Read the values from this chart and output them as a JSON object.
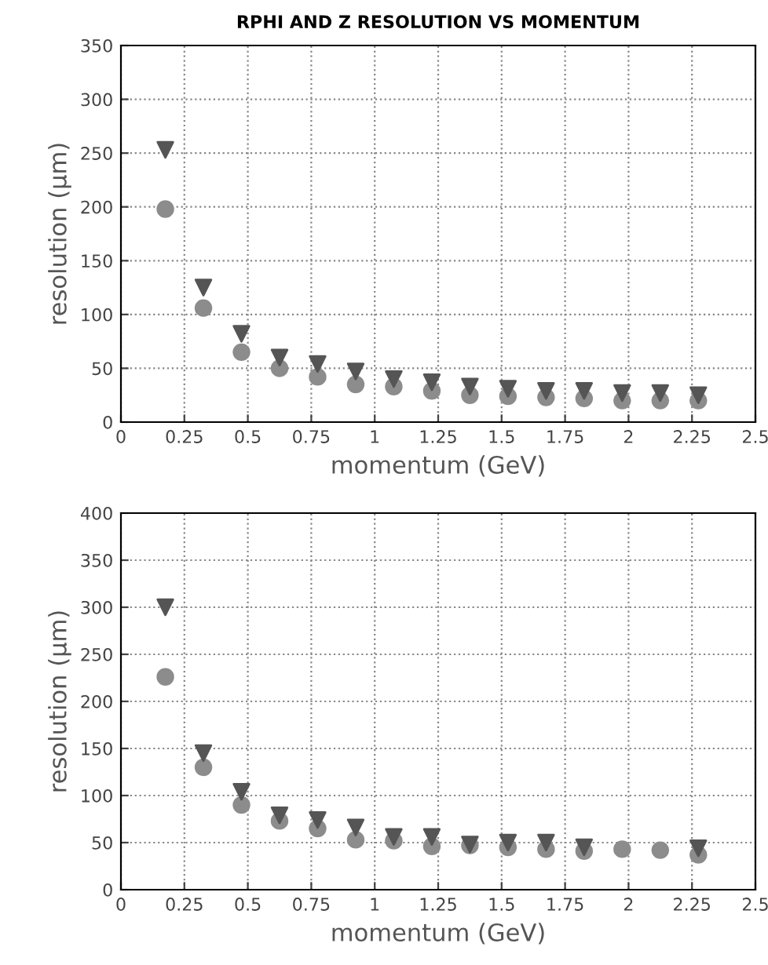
{
  "chart_data": [
    {
      "type": "scatter",
      "title": "RPHI AND Z RESOLUTION VS MOMENTUM",
      "xlabel": "momentum (GeV)",
      "ylabel": "resolution (μm)",
      "x": [
        0.175,
        0.325,
        0.475,
        0.625,
        0.775,
        0.925,
        1.075,
        1.225,
        1.375,
        1.525,
        1.675,
        1.825,
        1.975,
        2.125,
        2.275
      ],
      "series": [
        {
          "color": "#555555",
          "marker": "triangle",
          "values": [
            253,
            125,
            82,
            60,
            54,
            47,
            40,
            37,
            33,
            31,
            29,
            29,
            27,
            27,
            25
          ]
        },
        {
          "color": "#8c8c8c",
          "marker": "circle",
          "values": [
            198,
            106,
            65,
            50,
            42,
            35,
            33,
            29,
            25,
            24,
            23,
            22,
            20,
            20,
            20
          ]
        }
      ],
      "xlim": [
        0,
        2.5
      ],
      "xticks": [
        0,
        0.25,
        0.5,
        0.75,
        1,
        1.25,
        1.5,
        1.75,
        2,
        2.25,
        2.5
      ],
      "ylim": [
        0,
        350
      ],
      "yticks": [
        0,
        50,
        100,
        150,
        200,
        250,
        300,
        350
      ],
      "grid": true,
      "legend": false
    },
    {
      "type": "scatter",
      "xlabel": "momentum (GeV)",
      "ylabel": "resolution (μm)",
      "x": [
        0.175,
        0.325,
        0.475,
        0.625,
        0.775,
        0.925,
        1.075,
        1.225,
        1.375,
        1.525,
        1.675,
        1.825,
        1.975,
        2.125,
        2.275
      ],
      "series": [
        {
          "color": "#555555",
          "marker": "triangle",
          "values": [
            300,
            145,
            104,
            79,
            74,
            66,
            56,
            56,
            48,
            50,
            50,
            45,
            null,
            null,
            44
          ]
        },
        {
          "color": "#8c8c8c",
          "marker": "circle",
          "values": [
            226,
            130,
            90,
            73,
            65,
            53,
            52,
            46,
            47,
            45,
            43,
            41,
            43,
            42,
            37
          ]
        }
      ],
      "xlim": [
        0,
        2.5
      ],
      "xticks": [
        0,
        0.25,
        0.5,
        0.75,
        1,
        1.25,
        1.5,
        1.75,
        2,
        2.25,
        2.5
      ],
      "ylim": [
        0,
        400
      ],
      "yticks": [
        0,
        50,
        100,
        150,
        200,
        250,
        300,
        350,
        400
      ],
      "grid": true,
      "legend": false
    }
  ]
}
